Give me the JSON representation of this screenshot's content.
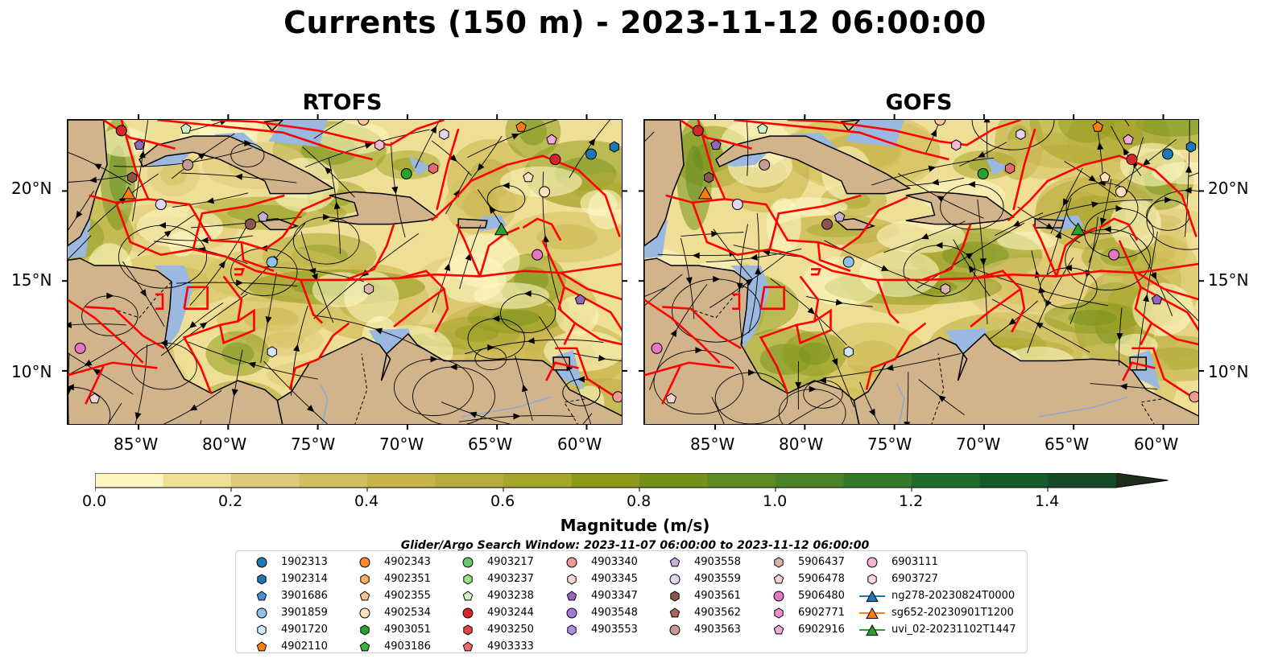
{
  "title": "Currents (150 m) - 2023-11-12 06:00:00",
  "panels": [
    {
      "title": "RTOFS"
    },
    {
      "title": "GOFS"
    }
  ],
  "axes": {
    "x_ticks": [
      "85°W",
      "80°W",
      "75°W",
      "70°W",
      "65°W",
      "60°W"
    ],
    "y_ticks": [
      "20°N",
      "15°N",
      "10°N"
    ]
  },
  "colorbar": {
    "label": "Magnitude (m/s)",
    "ticks": [
      "0.0",
      "0.2",
      "0.4",
      "0.6",
      "0.8",
      "1.0",
      "1.2",
      "1.4"
    ],
    "range": [
      0.0,
      1.6
    ],
    "colors": [
      "#fdf6c3",
      "#efdf96",
      "#e0c978",
      "#d4bf5e",
      "#c8b34b",
      "#b8ac3c",
      "#a6a52c",
      "#8f9a1d",
      "#74911a",
      "#5e8a22",
      "#4a8226",
      "#327a2a",
      "#1f6b2c",
      "#155b2a",
      "#154a26",
      "#1a3b22",
      "#1e2c1b"
    ],
    "extend": "max"
  },
  "search_window": "Glider/Argo Search Window: 2023-11-07 06:00:00 to 2023-11-12 06:00:00",
  "legend": {
    "columns": [
      [
        {
          "label": "1902313",
          "marker": "circle",
          "color": "#1f77b4"
        },
        {
          "label": "1902314",
          "marker": "hexagon",
          "color": "#1f77b4"
        },
        {
          "label": "3901686",
          "marker": "pentagon",
          "color": "#4a90d9"
        },
        {
          "label": "3901859",
          "marker": "circle",
          "color": "#8ec0ec"
        },
        {
          "label": "4901720",
          "marker": "hexagon",
          "color": "#cfe7fb"
        },
        {
          "label": "4902110",
          "marker": "pentagon",
          "color": "#ff7f0e"
        }
      ],
      [
        {
          "label": "4902343",
          "marker": "circle",
          "color": "#ff8c2a"
        },
        {
          "label": "4902351",
          "marker": "hexagon",
          "color": "#ffae66"
        },
        {
          "label": "4902355",
          "marker": "pentagon",
          "color": "#ffc48f"
        },
        {
          "label": "4902534",
          "marker": "circle",
          "color": "#ffe0bd"
        },
        {
          "label": "4903051",
          "marker": "hexagon",
          "color": "#2ca02c"
        },
        {
          "label": "4903186",
          "marker": "pentagon",
          "color": "#3cb43c"
        }
      ],
      [
        {
          "label": "4903217",
          "marker": "circle",
          "color": "#68c868"
        },
        {
          "label": "4903237",
          "marker": "hexagon",
          "color": "#98df8a"
        },
        {
          "label": "4903238",
          "marker": "pentagon",
          "color": "#d2f5c8"
        },
        {
          "label": "4903244",
          "marker": "circle",
          "color": "#d62728"
        },
        {
          "label": "4903250",
          "marker": "hexagon",
          "color": "#e04647"
        },
        {
          "label": "4903333",
          "marker": "pentagon",
          "color": "#ea6a6a"
        }
      ],
      [
        {
          "label": "4903340",
          "marker": "circle",
          "color": "#f09a94"
        },
        {
          "label": "4903345",
          "marker": "hexagon",
          "color": "#fcd3cf"
        },
        {
          "label": "4903347",
          "marker": "pentagon",
          "color": "#9467bd"
        },
        {
          "label": "4903548",
          "marker": "circle",
          "color": "#a07cd0"
        },
        {
          "label": "4903553",
          "marker": "hexagon",
          "color": "#b08ee0"
        }
      ],
      [
        {
          "label": "4903558",
          "marker": "pentagon",
          "color": "#c5b0d5"
        },
        {
          "label": "4903559",
          "marker": "circle",
          "color": "#e3d6f0"
        },
        {
          "label": "4903561",
          "marker": "hexagon",
          "color": "#8c564b"
        },
        {
          "label": "4903562",
          "marker": "pentagon",
          "color": "#a86a5c"
        },
        {
          "label": "4903563",
          "marker": "circle",
          "color": "#c49c94"
        }
      ],
      [
        {
          "label": "5906437",
          "marker": "hexagon",
          "color": "#dcb4aa"
        },
        {
          "label": "5906478",
          "marker": "pentagon",
          "color": "#f3d5cc"
        },
        {
          "label": "5906480",
          "marker": "circle",
          "color": "#e377c2"
        },
        {
          "label": "6902771",
          "marker": "hexagon",
          "color": "#ec8fd0"
        },
        {
          "label": "6902916",
          "marker": "pentagon",
          "color": "#f3a8dc"
        }
      ],
      [
        {
          "label": "6903111",
          "marker": "circle",
          "color": "#f7b6d2"
        },
        {
          "label": "6903727",
          "marker": "hexagon",
          "color": "#fbd6e8"
        },
        {
          "label": "ng278-20230824T0000",
          "marker": "triangle-line",
          "color": "#1f77b4"
        },
        {
          "label": "sg652-20230901T1200",
          "marker": "triangle-line",
          "color": "#ff7f0e"
        },
        {
          "label": "uvi_02-20231102T1447",
          "marker": "triangle-line",
          "color": "#2ca02c"
        }
      ]
    ]
  },
  "map_colors": {
    "land": "#d2b48c",
    "shelf": "#9ab8e0",
    "eez": "#ff0000",
    "stream": "#000000"
  }
}
